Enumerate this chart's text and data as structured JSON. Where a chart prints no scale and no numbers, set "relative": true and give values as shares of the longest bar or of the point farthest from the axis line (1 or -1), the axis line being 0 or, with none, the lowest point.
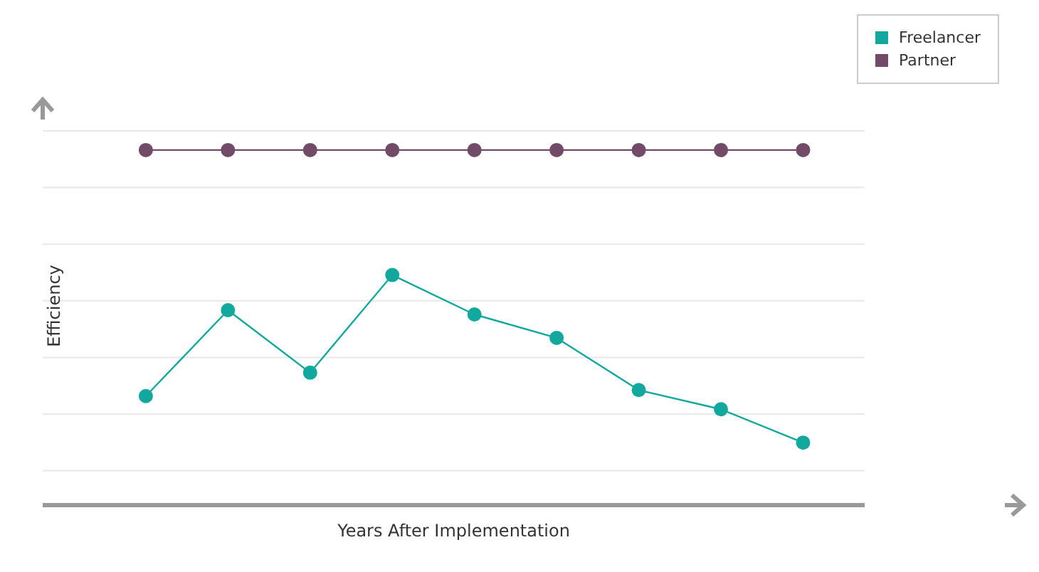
{
  "chart_data": {
    "type": "line",
    "relative": true,
    "xlabel": "Years After Implementation",
    "ylabel": "Efficiency",
    "categories": [
      null,
      null,
      null,
      null,
      null,
      null,
      null,
      null,
      null
    ],
    "series": [
      {
        "name": "Freelancer",
        "color": "#12a89d",
        "values": [
          0.307,
          0.549,
          0.373,
          0.648,
          0.537,
          0.471,
          0.324,
          0.27,
          0.176
        ]
      },
      {
        "name": "Partner",
        "color": "#714b67",
        "values": [
          1,
          1,
          1,
          1,
          1,
          1,
          1,
          1,
          1
        ]
      }
    ],
    "grid": "y",
    "legend": "top right",
    "marker": "circle",
    "line_style": "solid"
  }
}
